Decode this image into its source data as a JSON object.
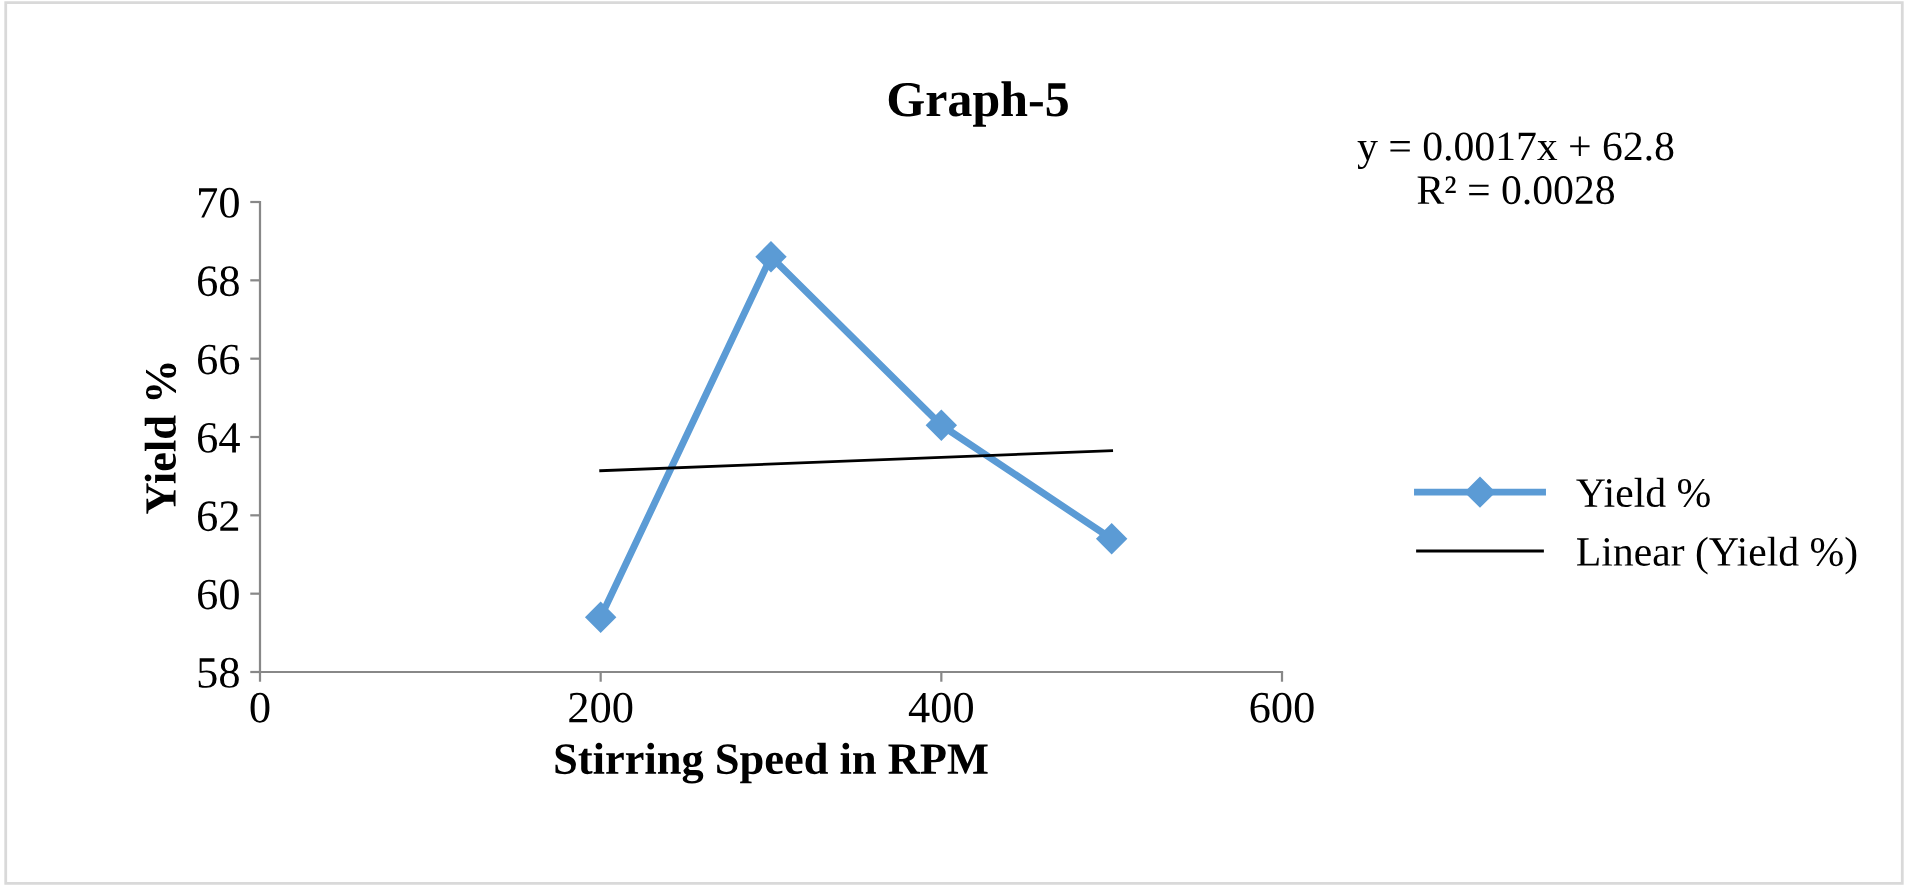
{
  "chart_data": {
    "type": "line",
    "title": "Graph-5",
    "xlabel": "Stirring Speed in RPM",
    "ylabel": "Yield %",
    "x": [
      200,
      300,
      400,
      500
    ],
    "series": [
      {
        "name": "Yield %",
        "color": "#5b9bd5",
        "values": [
          59.4,
          68.6,
          64.3,
          61.4
        ],
        "marker": "diamond",
        "line_style": "solid"
      },
      {
        "name": "Linear (Yield %)",
        "type": "line",
        "color": "#000000",
        "x": [
          200,
          500
        ],
        "values": [
          63.14,
          63.65
        ],
        "marker": "none",
        "line_style": "solid"
      }
    ],
    "annotations": [
      "y = 0.0017x + 62.8\nR² = 0.0028"
    ],
    "xlim": [
      0,
      600
    ],
    "xticks": [
      0,
      200,
      400,
      600
    ],
    "ylim": [
      58,
      70
    ],
    "yticks": [
      58,
      60,
      62,
      64,
      66,
      68,
      70
    ],
    "grid": false,
    "legend": "right"
  }
}
